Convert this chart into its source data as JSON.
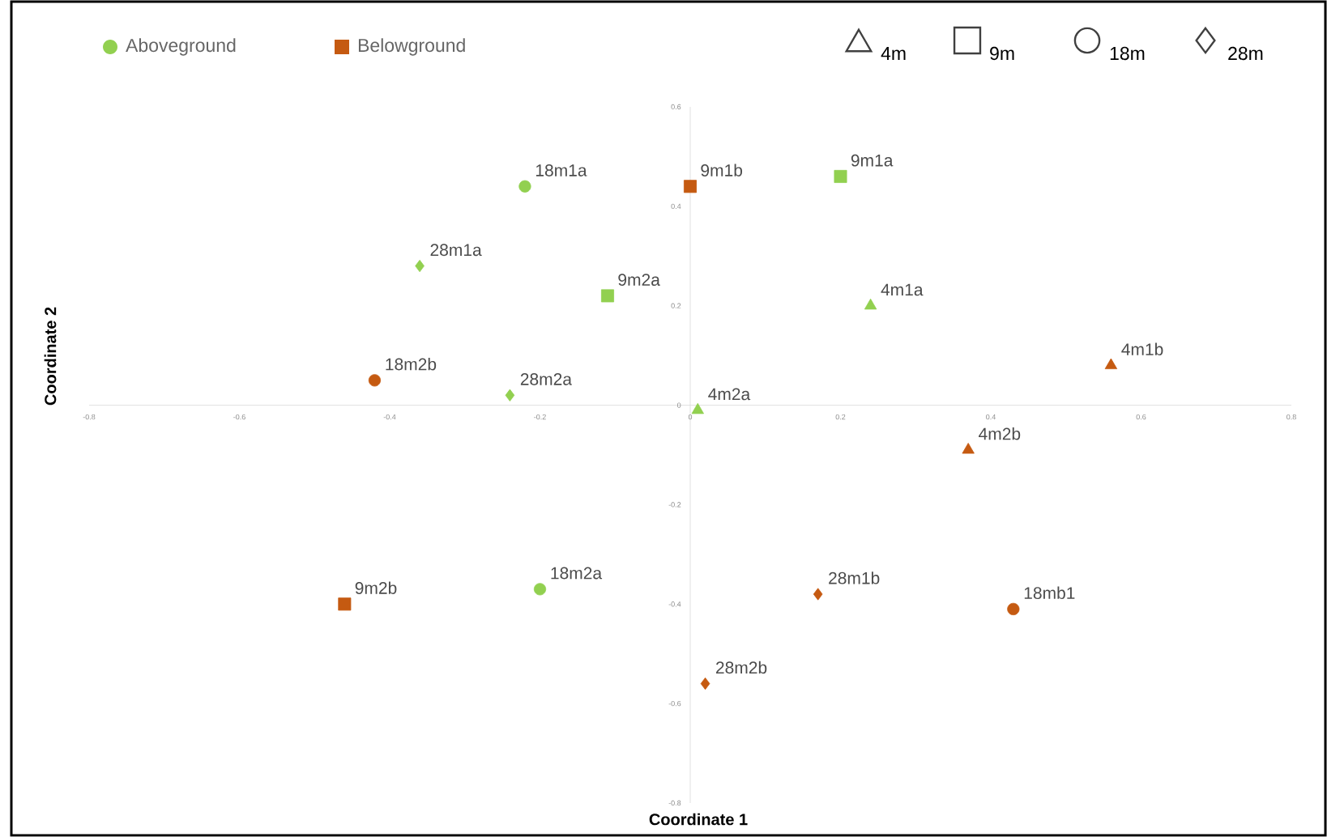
{
  "chart_data": {
    "type": "scatter",
    "xlabel": "Coordinate 1",
    "ylabel": "Coordinate 2",
    "xlim": [
      -0.8,
      0.8
    ],
    "ylim": [
      -0.8,
      0.6
    ],
    "xticks": [
      -0.8,
      -0.6,
      -0.4,
      -0.2,
      0,
      0.2,
      0.4,
      0.6,
      0.8
    ],
    "yticks": [
      -0.8,
      -0.6,
      -0.4,
      -0.2,
      0,
      0.2,
      0.4,
      0.6
    ],
    "grid": false,
    "annotations": [
      "Aboveground",
      "Belowground",
      "4m",
      "9m",
      "18m",
      "28m"
    ],
    "series": [
      {
        "color": "#92d050",
        "marker": "triangle",
        "x": [
          0.24,
          0.01
        ],
        "values": [
          0.2,
          -0.01
        ],
        "value_labels": [
          "4m1a",
          "4m2a"
        ]
      },
      {
        "color": "#92d050",
        "marker": "square",
        "x": [
          0.2,
          -0.11
        ],
        "values": [
          0.46,
          0.22
        ],
        "value_labels": [
          "9m1a",
          "9m2a"
        ]
      },
      {
        "color": "#92d050",
        "marker": "circle",
        "x": [
          -0.22,
          -0.2
        ],
        "values": [
          0.44,
          -0.37
        ],
        "value_labels": [
          "18m1a",
          "18m2a"
        ]
      },
      {
        "color": "#92d050",
        "marker": "diamond",
        "x": [
          -0.36,
          -0.24
        ],
        "values": [
          0.28,
          0.02
        ],
        "value_labels": [
          "28m1a",
          "28m2a"
        ]
      },
      {
        "color": "#c55a11",
        "marker": "triangle",
        "x": [
          0.56,
          0.37
        ],
        "values": [
          0.08,
          -0.09
        ],
        "value_labels": [
          "4m1b",
          "4m2b"
        ]
      },
      {
        "color": "#c55a11",
        "marker": "square",
        "x": [
          0.0,
          -0.46
        ],
        "values": [
          0.44,
          -0.4
        ],
        "value_labels": [
          "9m1b",
          "9m2b"
        ]
      },
      {
        "color": "#c55a11",
        "marker": "circle",
        "x": [
          -0.42,
          0.43
        ],
        "values": [
          0.05,
          -0.41
        ],
        "value_labels": [
          "18m2b",
          "18mb1"
        ]
      },
      {
        "color": "#c55a11",
        "marker": "diamond",
        "x": [
          0.17,
          0.02
        ],
        "values": [
          -0.38,
          -0.56
        ],
        "value_labels": [
          "28m1b",
          "28m2b"
        ]
      }
    ]
  }
}
